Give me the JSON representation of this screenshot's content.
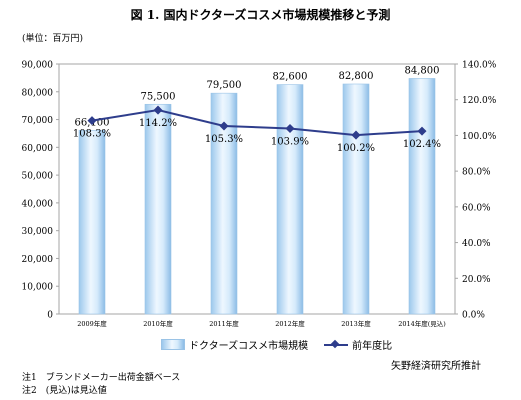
{
  "title": "図 1. 国内ドクターズコスメ市場規模推移と予測",
  "unit_label": "(単位：百万円)",
  "legend": {
    "bar_label": "ドクターズコスメ市場規模",
    "line_label": "前年度比"
  },
  "source": "矢野経済研究所推計",
  "notes": [
    "注1　ブランドメーカー出荷金額ベース",
    "注2　(見込)は見込値"
  ],
  "colors": {
    "bar_edge": "#9cc8ec",
    "bar_center": "#eef7ff",
    "line": "#2e3d8c",
    "grid": "#a6a6a6"
  },
  "chart_data": {
    "type": "bar",
    "categories": [
      "2009年度",
      "2010年度",
      "2011年度",
      "2012年度",
      "2013年度",
      "2014年度(見込)"
    ],
    "series": [
      {
        "name": "ドクターズコスメ市場規模",
        "type": "bar",
        "axis": "left",
        "values": [
          66100,
          75500,
          79500,
          82600,
          82800,
          84800
        ],
        "labels": [
          "66,100",
          "75,500",
          "79,500",
          "82,600",
          "82,800",
          "84,800"
        ]
      },
      {
        "name": "前年度比",
        "type": "line",
        "axis": "right",
        "values": [
          108.3,
          114.2,
          105.3,
          103.9,
          100.2,
          102.4
        ],
        "labels": [
          "108.3%",
          "114.2%",
          "105.3%",
          "103.9%",
          "100.2%",
          "102.4%"
        ]
      }
    ],
    "y_left": {
      "min": 0,
      "max": 90000,
      "ticks": [
        "0",
        "10,000",
        "20,000",
        "30,000",
        "40,000",
        "50,000",
        "60,000",
        "70,000",
        "80,000",
        "90,000"
      ]
    },
    "y_right": {
      "min": 0,
      "max": 140,
      "ticks": [
        "0.0%",
        "20.0%",
        "40.0%",
        "60.0%",
        "80.0%",
        "100.0%",
        "120.0%",
        "140.0%"
      ]
    },
    "grid": false,
    "legend_position": "bottom"
  }
}
